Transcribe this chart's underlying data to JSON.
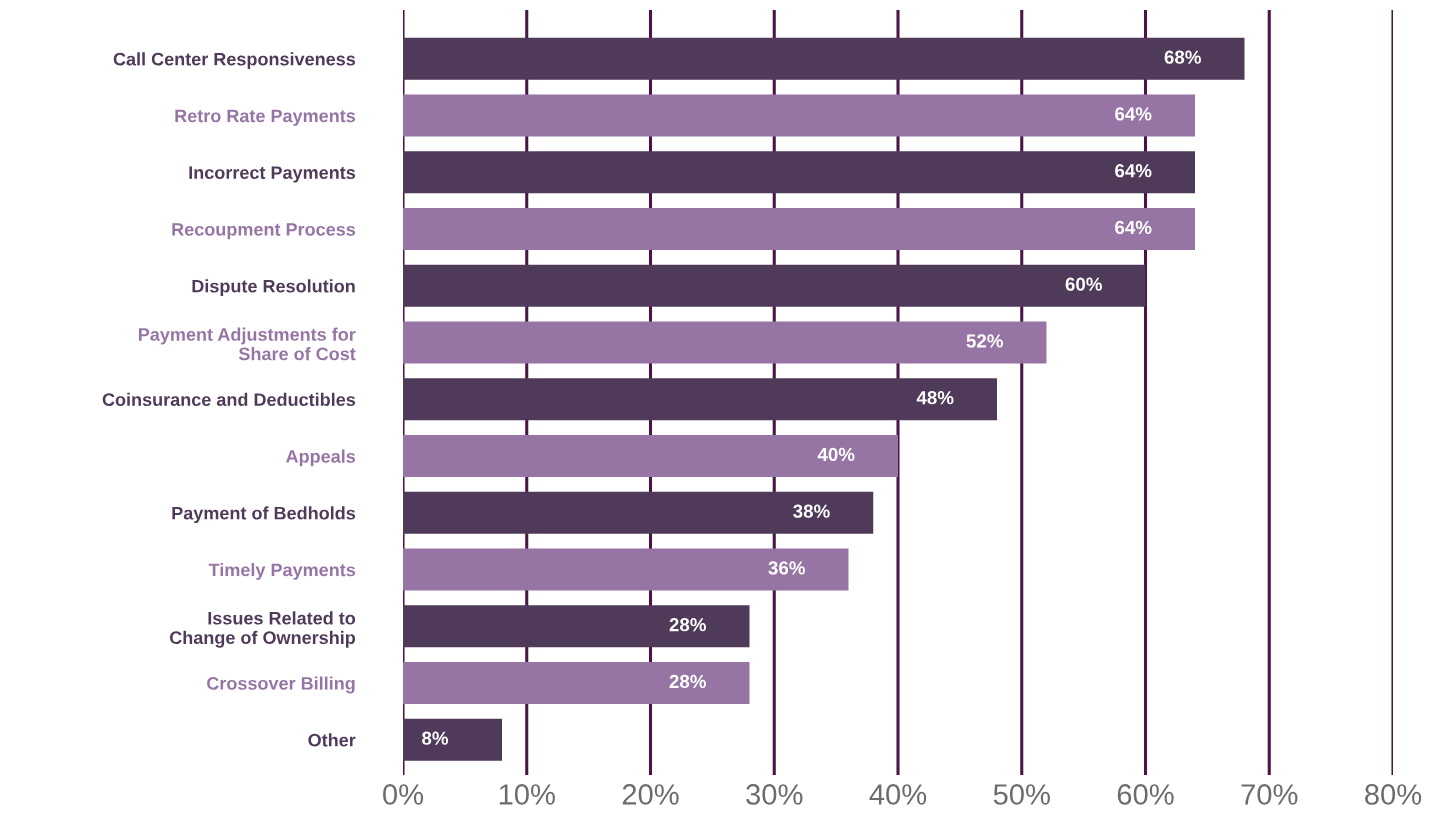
{
  "chart_data": {
    "type": "bar",
    "orientation": "horizontal",
    "categories": [
      "Call Center Responsiveness",
      "Retro Rate Payments",
      "Incorrect Payments",
      "Recoupment Process",
      "Dispute Resolution",
      "Payment Adjustments for\nShare of Cost",
      "Coinsurance and Deductibles",
      "Appeals",
      "Payment of Bedholds",
      "Timely Payments",
      "Issues Related to\nChange of Ownership",
      "Crossover Billing",
      "Other"
    ],
    "values": [
      68,
      64,
      64,
      64,
      60,
      52,
      48,
      40,
      38,
      36,
      28,
      28,
      8
    ],
    "colors": [
      "#4f3a5a",
      "#9675a5",
      "#4f3a5a",
      "#9675a5",
      "#4f3a5a",
      "#9675a5",
      "#4f3a5a",
      "#9675a5",
      "#4f3a5a",
      "#9675a5",
      "#4f3a5a",
      "#9675a5",
      "#4f3a5a"
    ],
    "xlim": [
      0,
      80
    ],
    "xticks": [
      {
        "value": 0,
        "label": "0%"
      },
      {
        "value": 10,
        "label": "10%"
      },
      {
        "value": 20,
        "label": "20%"
      },
      {
        "value": 30,
        "label": "30%"
      },
      {
        "value": 40,
        "label": "40%"
      },
      {
        "value": 50,
        "label": "50%"
      },
      {
        "value": 60,
        "label": "60%"
      },
      {
        "value": 70,
        "label": "70%"
      },
      {
        "value": 80,
        "label": "80%"
      }
    ],
    "value_labels": [
      "68%",
      "64%",
      "64%",
      "64%",
      "60%",
      "52%",
      "48%",
      "40%",
      "38%",
      "36%",
      "28%",
      "28%",
      "8%"
    ],
    "grid": "x",
    "legend": false
  }
}
